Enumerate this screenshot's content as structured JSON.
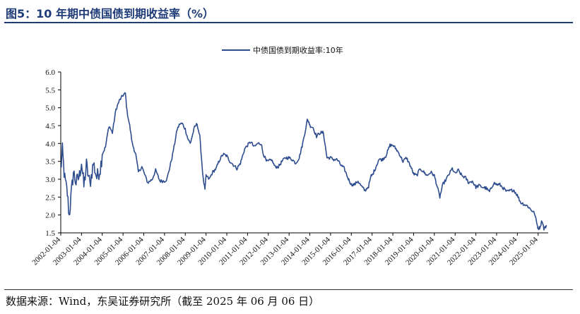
{
  "title": "图5：10 年期中债国债到期收益率（%）",
  "source": "数据来源：Wind，东吴证券研究所（截至 2025 年 06 月 06 日）",
  "chart_data": {
    "type": "line",
    "legend": "top-center",
    "grid": false,
    "line_color": "#2e4d8f",
    "ylim": [
      1.5,
      6.0
    ],
    "yticks": [
      "6.0",
      "5.5",
      "5.0",
      "4.5",
      "4.0",
      "3.5",
      "3.0",
      "2.5",
      "2.0",
      "1.5"
    ],
    "xticks": [
      "2002-01-04",
      "2003-01-04",
      "2004-01-04",
      "2005-01-04",
      "2006-01-04",
      "2007-01-04",
      "2008-01-04",
      "2009-01-04",
      "2010-01-04",
      "2011-01-04",
      "2012-01-04",
      "2013-01-04",
      "2014-01-04",
      "2015-01-04",
      "2016-01-04",
      "2017-01-04",
      "2018-01-04",
      "2019-01-04",
      "2020-01-04",
      "2021-01-04",
      "2022-01-04",
      "2023-01-04",
      "2024-01-04",
      "2025-01-04"
    ],
    "series": [
      {
        "name": "中债国债到期收益率:10年",
        "points": [
          [
            "2002-01-04",
            3.25
          ],
          [
            "2002-02-01",
            3.8
          ],
          [
            "2002-03-15",
            3.0
          ],
          [
            "2002-05-01",
            2.6
          ],
          [
            "2002-06-01",
            1.97
          ],
          [
            "2002-07-01",
            2.45
          ],
          [
            "2002-08-15",
            3.2
          ],
          [
            "2002-10-01",
            2.9
          ],
          [
            "2002-12-01",
            3.1
          ],
          [
            "2003-01-04",
            3.5
          ],
          [
            "2003-02-15",
            2.8
          ],
          [
            "2003-04-01",
            3.4
          ],
          [
            "2003-06-01",
            2.85
          ],
          [
            "2003-08-01",
            3.45
          ],
          [
            "2003-10-01",
            3.05
          ],
          [
            "2003-12-01",
            3.3
          ],
          [
            "2004-01-04",
            3.7
          ],
          [
            "2004-03-01",
            3.9
          ],
          [
            "2004-05-01",
            4.5
          ],
          [
            "2004-07-01",
            4.3
          ],
          [
            "2004-09-01",
            4.95
          ],
          [
            "2004-11-01",
            5.2
          ],
          [
            "2005-01-04",
            5.35
          ],
          [
            "2005-02-15",
            5.4
          ],
          [
            "2005-03-15",
            4.9
          ],
          [
            "2005-05-01",
            4.5
          ],
          [
            "2005-06-15",
            4.0
          ],
          [
            "2005-08-15",
            3.7
          ],
          [
            "2005-10-01",
            3.2
          ],
          [
            "2005-12-01",
            3.35
          ],
          [
            "2006-01-04",
            3.2
          ],
          [
            "2006-03-15",
            2.9
          ],
          [
            "2006-06-01",
            3.0
          ],
          [
            "2006-08-01",
            3.25
          ],
          [
            "2006-10-15",
            2.95
          ],
          [
            "2007-01-04",
            2.95
          ],
          [
            "2007-02-15",
            3.0
          ],
          [
            "2007-04-01",
            3.3
          ],
          [
            "2007-05-15",
            3.6
          ],
          [
            "2007-07-01",
            4.0
          ],
          [
            "2007-08-15",
            4.4
          ],
          [
            "2007-10-01",
            4.55
          ],
          [
            "2007-11-15",
            4.55
          ],
          [
            "2008-01-04",
            4.4
          ],
          [
            "2008-02-15",
            4.15
          ],
          [
            "2008-04-01",
            4.0
          ],
          [
            "2008-06-15",
            4.45
          ],
          [
            "2008-08-01",
            4.55
          ],
          [
            "2008-09-15",
            4.2
          ],
          [
            "2008-10-15",
            3.6
          ],
          [
            "2008-11-15",
            3.0
          ],
          [
            "2008-12-15",
            2.7
          ],
          [
            "2009-01-04",
            3.1
          ],
          [
            "2009-03-01",
            3.0
          ],
          [
            "2009-05-01",
            3.2
          ],
          [
            "2009-07-01",
            3.3
          ],
          [
            "2009-09-01",
            3.55
          ],
          [
            "2009-11-01",
            3.7
          ],
          [
            "2010-01-04",
            3.65
          ],
          [
            "2010-03-01",
            3.5
          ],
          [
            "2010-05-01",
            3.4
          ],
          [
            "2010-07-01",
            3.3
          ],
          [
            "2010-09-01",
            3.45
          ],
          [
            "2010-11-15",
            3.85
          ],
          [
            "2011-01-04",
            3.95
          ],
          [
            "2011-03-01",
            4.05
          ],
          [
            "2011-05-01",
            3.9
          ],
          [
            "2011-07-01",
            4.0
          ],
          [
            "2011-09-01",
            4.0
          ],
          [
            "2011-10-01",
            3.75
          ],
          [
            "2011-12-01",
            3.5
          ],
          [
            "2012-01-04",
            3.5
          ],
          [
            "2012-03-01",
            3.55
          ],
          [
            "2012-05-01",
            3.35
          ],
          [
            "2012-07-01",
            3.35
          ],
          [
            "2012-09-01",
            3.5
          ],
          [
            "2012-11-01",
            3.6
          ],
          [
            "2013-01-04",
            3.6
          ],
          [
            "2013-03-01",
            3.55
          ],
          [
            "2013-05-01",
            3.45
          ],
          [
            "2013-07-01",
            3.6
          ],
          [
            "2013-09-01",
            4.0
          ],
          [
            "2013-11-20",
            4.65
          ],
          [
            "2013-12-20",
            4.6
          ],
          [
            "2014-01-04",
            4.5
          ],
          [
            "2014-03-01",
            4.45
          ],
          [
            "2014-05-01",
            4.2
          ],
          [
            "2014-07-01",
            4.3
          ],
          [
            "2014-09-01",
            4.3
          ],
          [
            "2014-11-01",
            3.6
          ],
          [
            "2015-01-04",
            3.6
          ],
          [
            "2015-03-01",
            3.55
          ],
          [
            "2015-05-01",
            3.55
          ],
          [
            "2015-07-01",
            3.4
          ],
          [
            "2015-09-01",
            3.3
          ],
          [
            "2015-11-01",
            3.05
          ],
          [
            "2016-01-04",
            2.85
          ],
          [
            "2016-03-01",
            2.85
          ],
          [
            "2016-05-01",
            2.95
          ],
          [
            "2016-07-01",
            2.8
          ],
          [
            "2016-09-01",
            2.68
          ],
          [
            "2016-11-01",
            2.8
          ],
          [
            "2016-12-20",
            3.1
          ],
          [
            "2017-01-04",
            3.1
          ],
          [
            "2017-03-01",
            3.3
          ],
          [
            "2017-05-01",
            3.55
          ],
          [
            "2017-07-01",
            3.55
          ],
          [
            "2017-09-01",
            3.65
          ],
          [
            "2017-11-15",
            3.95
          ],
          [
            "2018-01-04",
            3.95
          ],
          [
            "2018-03-01",
            3.85
          ],
          [
            "2018-05-01",
            3.7
          ],
          [
            "2018-07-01",
            3.5
          ],
          [
            "2018-09-01",
            3.6
          ],
          [
            "2018-11-01",
            3.4
          ],
          [
            "2019-01-04",
            3.15
          ],
          [
            "2019-03-01",
            3.1
          ],
          [
            "2019-05-01",
            3.3
          ],
          [
            "2019-07-01",
            3.2
          ],
          [
            "2019-09-01",
            3.1
          ],
          [
            "2019-11-01",
            3.2
          ],
          [
            "2020-01-04",
            3.1
          ],
          [
            "2020-02-15",
            2.85
          ],
          [
            "2020-04-10",
            2.5
          ],
          [
            "2020-06-01",
            2.85
          ],
          [
            "2020-08-01",
            3.0
          ],
          [
            "2020-11-15",
            3.3
          ],
          [
            "2021-01-04",
            3.15
          ],
          [
            "2021-03-01",
            3.25
          ],
          [
            "2021-05-01",
            3.1
          ],
          [
            "2021-07-01",
            3.05
          ],
          [
            "2021-09-01",
            2.9
          ],
          [
            "2021-11-01",
            2.95
          ],
          [
            "2022-01-04",
            2.78
          ],
          [
            "2022-03-01",
            2.82
          ],
          [
            "2022-05-01",
            2.78
          ],
          [
            "2022-07-01",
            2.75
          ],
          [
            "2022-09-01",
            2.65
          ],
          [
            "2022-11-15",
            2.9
          ],
          [
            "2023-01-04",
            2.85
          ],
          [
            "2023-03-01",
            2.85
          ],
          [
            "2023-05-01",
            2.75
          ],
          [
            "2023-07-01",
            2.65
          ],
          [
            "2023-09-01",
            2.68
          ],
          [
            "2023-11-01",
            2.7
          ],
          [
            "2024-01-04",
            2.55
          ],
          [
            "2024-03-01",
            2.35
          ],
          [
            "2024-05-01",
            2.3
          ],
          [
            "2024-07-01",
            2.25
          ],
          [
            "2024-09-01",
            2.15
          ],
          [
            "2024-11-01",
            2.05
          ],
          [
            "2024-12-20",
            1.7
          ],
          [
            "2025-01-04",
            1.62
          ],
          [
            "2025-02-01",
            1.65
          ],
          [
            "2025-03-15",
            1.85
          ],
          [
            "2025-04-15",
            1.62
          ],
          [
            "2025-06-06",
            1.7
          ]
        ]
      }
    ]
  }
}
